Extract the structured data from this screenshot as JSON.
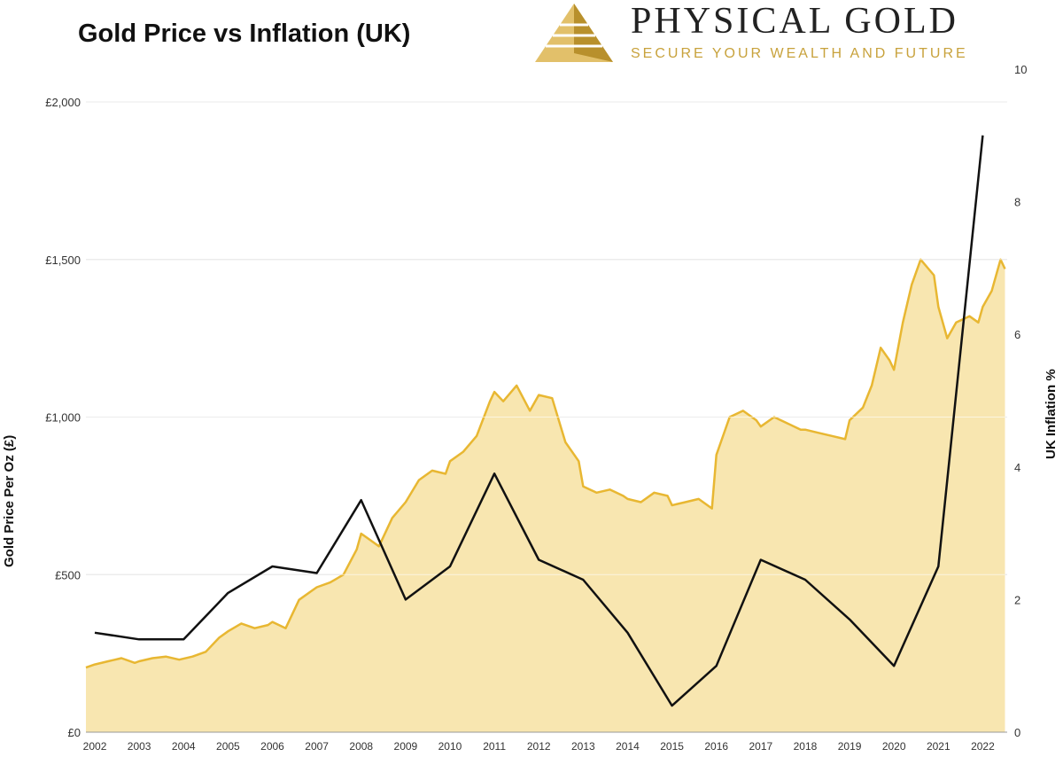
{
  "header": {
    "title": "Gold Price vs Inflation (UK)",
    "brand_name": "PHYSICAL GOLD",
    "brand_tagline": "SECURE YOUR WEALTH AND FUTURE",
    "logo_icon": "pyramid-logo-icon",
    "brand_color": "#c8a23c"
  },
  "chart_data": {
    "type": "area",
    "title": "Gold Price vs Inflation (UK)",
    "xlabel": "",
    "ylabel_left": "Gold Price Per Oz (£)",
    "ylabel_right": "UK Inflation %",
    "x_ticks": [
      "2002",
      "2003",
      "2004",
      "2005",
      "2006",
      "2007",
      "2008",
      "2009",
      "2010",
      "2011",
      "2012",
      "2013",
      "2014",
      "2015",
      "2016",
      "2017",
      "2018",
      "2019",
      "2020",
      "2021",
      "2022"
    ],
    "y_left_ticks": [
      "£0",
      "£500",
      "£1,000",
      "£1,500",
      "£2,000"
    ],
    "y_left_lim": [
      0,
      2000
    ],
    "y_right_ticks": [
      "0",
      "2",
      "4",
      "6",
      "8",
      "10"
    ],
    "y_right_lim": [
      0,
      10
    ],
    "grid": true,
    "colors": {
      "gold_line": "#e8b732",
      "gold_fill": "#f8e6b0",
      "inflation_line": "#111111",
      "grid": "#cfcfcf"
    },
    "series": [
      {
        "name": "",
        "axis": "left",
        "x": [
          2001.8,
          2002.0,
          2002.3,
          2002.6,
          2002.9,
          2003.0,
          2003.3,
          2003.6,
          2003.9,
          2004.2,
          2004.5,
          2004.8,
          2005.0,
          2005.3,
          2005.6,
          2005.9,
          2006.0,
          2006.3,
          2006.6,
          2006.9,
          2007.0,
          2007.3,
          2007.6,
          2007.9,
          2008.0,
          2008.2,
          2008.4,
          2008.7,
          2009.0,
          2009.3,
          2009.6,
          2009.9,
          2010.0,
          2010.3,
          2010.6,
          2010.9,
          2011.0,
          2011.2,
          2011.5,
          2011.8,
          2012.0,
          2012.3,
          2012.6,
          2012.9,
          2013.0,
          2013.3,
          2013.6,
          2013.9,
          2014.0,
          2014.3,
          2014.6,
          2014.9,
          2015.0,
          2015.3,
          2015.6,
          2015.9,
          2016.0,
          2016.3,
          2016.6,
          2016.9,
          2017.0,
          2017.3,
          2017.6,
          2017.9,
          2018.0,
          2018.3,
          2018.6,
          2018.9,
          2019.0,
          2019.3,
          2019.5,
          2019.7,
          2019.9,
          2020.0,
          2020.2,
          2020.4,
          2020.6,
          2020.9,
          2021.0,
          2021.2,
          2021.4,
          2021.7,
          2021.9,
          2022.0,
          2022.2,
          2022.4,
          2022.5
        ],
        "y": [
          205,
          215,
          225,
          235,
          220,
          225,
          235,
          240,
          230,
          240,
          255,
          300,
          320,
          345,
          330,
          340,
          350,
          330,
          420,
          450,
          460,
          475,
          500,
          580,
          630,
          610,
          590,
          680,
          730,
          800,
          830,
          820,
          860,
          890,
          940,
          1050,
          1080,
          1050,
          1100,
          1020,
          1070,
          1060,
          920,
          860,
          780,
          760,
          770,
          750,
          740,
          730,
          760,
          750,
          720,
          730,
          740,
          710,
          880,
          1000,
          1020,
          990,
          970,
          1000,
          980,
          960,
          960,
          950,
          940,
          930,
          990,
          1030,
          1100,
          1220,
          1180,
          1150,
          1300,
          1420,
          1500,
          1450,
          1350,
          1250,
          1300,
          1320,
          1300,
          1350,
          1400,
          1500,
          1470
        ]
      },
      {
        "name": "",
        "axis": "right",
        "x": [
          2002,
          2003,
          2004,
          2005,
          2006,
          2007,
          2008,
          2009,
          2010,
          2011,
          2012,
          2013,
          2014,
          2015,
          2016,
          2017,
          2018,
          2019,
          2020,
          2021,
          2022
        ],
        "y": [
          1.5,
          1.4,
          1.4,
          2.1,
          2.5,
          2.4,
          3.5,
          2.0,
          2.5,
          3.9,
          2.6,
          2.3,
          1.5,
          0.4,
          1.0,
          2.6,
          2.3,
          1.7,
          1.0,
          2.5,
          9.0
        ]
      }
    ]
  }
}
